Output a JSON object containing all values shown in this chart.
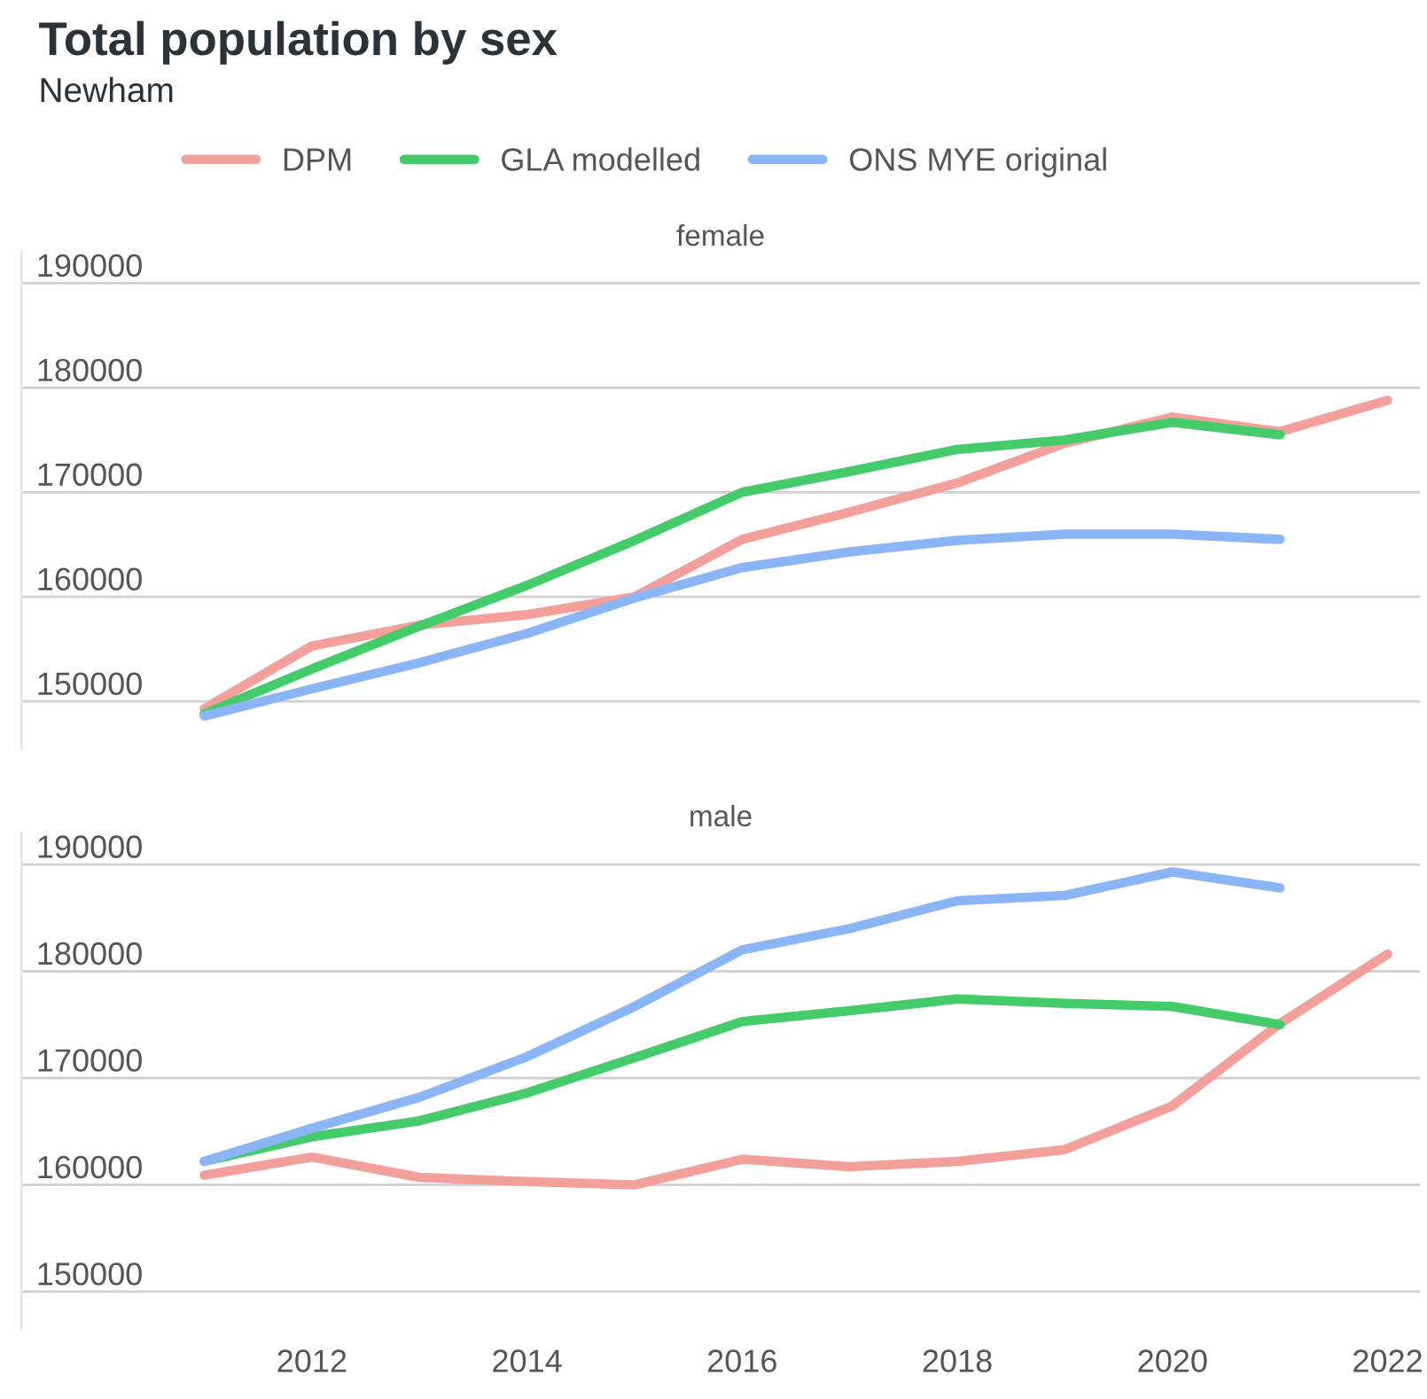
{
  "chart_data": [
    {
      "type": "line",
      "title": "Total population by sex",
      "subtitle": "Newham",
      "annotations": [
        "female"
      ],
      "legend": "top",
      "grid": "y",
      "tick_labels": "y",
      "line_style": "solid",
      "marker": "none",
      "x": [
        2011,
        2012,
        2013,
        2014,
        2015,
        2016,
        2017,
        2018,
        2019,
        2020,
        2021,
        2022
      ],
      "xlim": [
        2009.3,
        2022.3
      ],
      "xticks": [
        2012,
        2014,
        2016,
        2018,
        2020,
        2022
      ],
      "ylim": [
        145500,
        193000
      ],
      "yticks": [
        150000,
        160000,
        170000,
        180000,
        190000
      ],
      "series": [
        {
          "name": "DPM",
          "color": "#f4a09a",
          "values": [
            149300,
            155300,
            157300,
            158300,
            160000,
            165500,
            168100,
            170900,
            174700,
            177200,
            175800,
            178800
          ]
        },
        {
          "name": "GLA modelled",
          "color": "#45cc6a",
          "values": [
            148800,
            153100,
            157200,
            161100,
            165400,
            170000,
            172000,
            174100,
            175000,
            176700,
            175500,
            null
          ]
        },
        {
          "name": "ONS MYE original",
          "color": "#8ab6f8",
          "values": [
            148600,
            151200,
            153700,
            156500,
            159900,
            162800,
            164300,
            165400,
            166000,
            166000,
            165500,
            null
          ]
        }
      ]
    },
    {
      "type": "line",
      "annotations": [
        "male"
      ],
      "grid": "y",
      "line_style": "solid",
      "marker": "none",
      "x": [
        2011,
        2012,
        2013,
        2014,
        2015,
        2016,
        2017,
        2018,
        2019,
        2020,
        2021,
        2022
      ],
      "xlim": [
        2009.3,
        2022.3
      ],
      "xticks": [
        2012,
        2014,
        2016,
        2018,
        2020,
        2022
      ],
      "ylim": [
        146500,
        193000
      ],
      "yticks": [
        150000,
        160000,
        170000,
        180000,
        190000
      ],
      "series": [
        {
          "color": "#f4a09a",
          "values": [
            160900,
            162600,
            160700,
            160300,
            160000,
            162400,
            161700,
            162200,
            163300,
            167400,
            175100,
            181600
          ]
        },
        {
          "color": "#45cc6a",
          "values": [
            162200,
            164500,
            166000,
            168600,
            171900,
            175300,
            176300,
            177400,
            177000,
            176700,
            175000,
            null
          ]
        },
        {
          "color": "#8ab6f8",
          "values": [
            162200,
            165300,
            168200,
            172000,
            176700,
            182000,
            184000,
            186600,
            187100,
            189300,
            187800,
            null
          ]
        }
      ]
    }
  ]
}
